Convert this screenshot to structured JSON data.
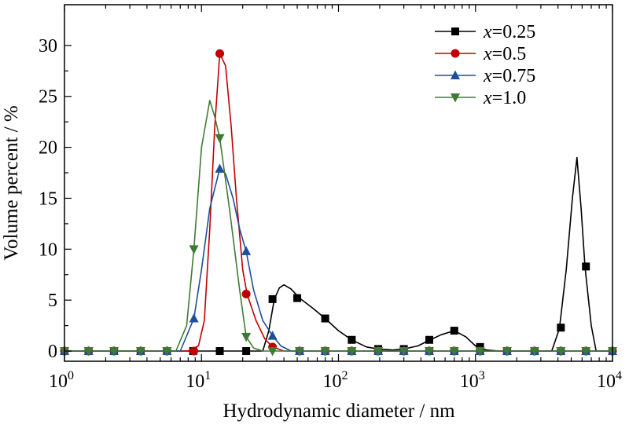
{
  "chart_data": {
    "type": "line",
    "xlabel": "Hydrodynamic diameter / nm",
    "ylabel": "Volume percent / %",
    "x_scale": "log",
    "xlim": [
      1,
      10000
    ],
    "ylim": [
      -1,
      34
    ],
    "x_ticks": [
      {
        "value": 1,
        "base": "10",
        "exp": "0"
      },
      {
        "value": 10,
        "base": "10",
        "exp": "1"
      },
      {
        "value": 100,
        "base": "10",
        "exp": "2"
      },
      {
        "value": 1000,
        "base": "10",
        "exp": "3"
      },
      {
        "value": 10000,
        "base": "10",
        "exp": "4"
      }
    ],
    "y_ticks": [
      0,
      5,
      10,
      15,
      20,
      25,
      30
    ],
    "legend_position": "top-right",
    "series": [
      {
        "name": "0.25",
        "name_var": "x",
        "color": "#000000",
        "marker": "square",
        "line_points": [
          [
            1,
            0
          ],
          [
            28,
            0
          ],
          [
            31,
            2
          ],
          [
            34,
            5.1
          ],
          [
            37,
            6.2
          ],
          [
            40,
            6.5
          ],
          [
            45,
            6.1
          ],
          [
            52,
            5.2
          ],
          [
            65,
            4.2
          ],
          [
            80,
            3.2
          ],
          [
            100,
            2
          ],
          [
            125,
            1.1
          ],
          [
            160,
            0.4
          ],
          [
            195,
            0.2
          ],
          [
            250,
            0.1
          ],
          [
            300,
            0.2
          ],
          [
            380,
            0.5
          ],
          [
            450,
            1
          ],
          [
            560,
            1.6
          ],
          [
            700,
            2
          ],
          [
            850,
            1.4
          ],
          [
            1000,
            0.5
          ],
          [
            1200,
            0.1
          ],
          [
            1500,
            0
          ],
          [
            3600,
            0
          ],
          [
            4100,
            2.2
          ],
          [
            4600,
            8
          ],
          [
            5100,
            15
          ],
          [
            5500,
            19
          ],
          [
            5900,
            14
          ],
          [
            6300,
            8.3
          ],
          [
            7000,
            2.5
          ],
          [
            7600,
            0
          ],
          [
            10000,
            0
          ]
        ],
        "markers": [
          [
            1,
            0
          ],
          [
            1.5,
            0
          ],
          [
            2.3,
            0
          ],
          [
            3.6,
            0
          ],
          [
            5.6,
            0
          ],
          [
            8.7,
            0
          ],
          [
            13.6,
            0
          ],
          [
            21.2,
            0
          ],
          [
            33,
            5.1
          ],
          [
            50,
            5.2
          ],
          [
            80,
            3.2
          ],
          [
            125,
            1.1
          ],
          [
            195,
            0.2
          ],
          [
            300,
            0.2
          ],
          [
            460,
            1.1
          ],
          [
            700,
            2
          ],
          [
            1080,
            0.4
          ],
          [
            1700,
            0
          ],
          [
            2700,
            0
          ],
          [
            4200,
            2.3
          ],
          [
            6400,
            8.3
          ],
          [
            10000,
            0
          ]
        ]
      },
      {
        "name": "0.5",
        "name_var": "x",
        "color": "#c00000",
        "marker": "circle",
        "line_points": [
          [
            1,
            0
          ],
          [
            8,
            0
          ],
          [
            9.5,
            0.5
          ],
          [
            10.5,
            3
          ],
          [
            11.5,
            12
          ],
          [
            12.5,
            22
          ],
          [
            13.6,
            29.2
          ],
          [
            15,
            28
          ],
          [
            16.5,
            22
          ],
          [
            18,
            15
          ],
          [
            20,
            8
          ],
          [
            21.5,
            5.6
          ],
          [
            25,
            3
          ],
          [
            29,
            1.2
          ],
          [
            33,
            0.4
          ],
          [
            40,
            0
          ],
          [
            10000,
            0
          ]
        ],
        "markers": [
          [
            1,
            0
          ],
          [
            1.5,
            0
          ],
          [
            2.3,
            0
          ],
          [
            3.6,
            0
          ],
          [
            5.6,
            0
          ],
          [
            8.8,
            0
          ],
          [
            13.6,
            29.2
          ],
          [
            21.2,
            5.6
          ],
          [
            33,
            0.4
          ],
          [
            52,
            0
          ],
          [
            80,
            0
          ],
          [
            125,
            0
          ],
          [
            195,
            0
          ],
          [
            300,
            0
          ],
          [
            460,
            0
          ],
          [
            700,
            0
          ],
          [
            1080,
            0
          ],
          [
            1700,
            0
          ],
          [
            2700,
            0
          ],
          [
            4200,
            0
          ],
          [
            6400,
            0
          ],
          [
            10000,
            0
          ]
        ]
      },
      {
        "name": "0.75",
        "name_var": "x",
        "color": "#1f4e9a",
        "marker": "triangle-up",
        "line_points": [
          [
            1,
            0
          ],
          [
            7,
            0
          ],
          [
            8.8,
            3.2
          ],
          [
            10,
            8
          ],
          [
            11.5,
            14
          ],
          [
            13.6,
            17.9
          ],
          [
            15,
            17.4
          ],
          [
            17,
            15
          ],
          [
            19,
            12
          ],
          [
            21.2,
            9.8
          ],
          [
            24,
            6
          ],
          [
            28,
            3
          ],
          [
            33,
            1.5
          ],
          [
            38,
            0.5
          ],
          [
            45,
            0
          ],
          [
            10000,
            0
          ]
        ],
        "markers": [
          [
            1,
            0
          ],
          [
            1.5,
            0
          ],
          [
            2.3,
            0
          ],
          [
            3.6,
            0
          ],
          [
            5.6,
            0
          ],
          [
            8.8,
            3.2
          ],
          [
            13.6,
            17.9
          ],
          [
            21.2,
            9.8
          ],
          [
            33,
            1.5
          ],
          [
            52,
            0
          ],
          [
            80,
            0
          ],
          [
            125,
            0
          ],
          [
            195,
            0
          ],
          [
            300,
            0
          ],
          [
            460,
            0
          ],
          [
            700,
            0
          ],
          [
            1080,
            0
          ],
          [
            1700,
            0
          ],
          [
            2700,
            0
          ],
          [
            4200,
            0
          ],
          [
            6400,
            0
          ],
          [
            10000,
            0
          ]
        ]
      },
      {
        "name": "1.0",
        "name_var": "x",
        "color": "#3f7a34",
        "marker": "triangle-down",
        "line_points": [
          [
            1,
            0
          ],
          [
            6.5,
            0
          ],
          [
            7.8,
            2.5
          ],
          [
            8.8,
            10
          ],
          [
            10,
            20
          ],
          [
            11.5,
            24.6
          ],
          [
            12.5,
            23
          ],
          [
            13.6,
            20.9
          ],
          [
            16,
            14
          ],
          [
            19,
            6
          ],
          [
            21.2,
            1.4
          ],
          [
            24,
            0.3
          ],
          [
            28,
            0
          ],
          [
            10000,
            0
          ]
        ],
        "markers": [
          [
            1,
            0
          ],
          [
            1.5,
            0
          ],
          [
            2.3,
            0
          ],
          [
            3.6,
            0
          ],
          [
            5.6,
            0
          ],
          [
            8.8,
            10
          ],
          [
            13.6,
            20.9
          ],
          [
            21.2,
            1.4
          ],
          [
            33,
            0
          ],
          [
            52,
            0
          ],
          [
            80,
            0
          ],
          [
            125,
            0
          ],
          [
            195,
            0
          ],
          [
            300,
            0
          ],
          [
            460,
            0
          ],
          [
            700,
            0
          ],
          [
            1080,
            0
          ],
          [
            1700,
            0
          ],
          [
            2700,
            0
          ],
          [
            4200,
            0
          ],
          [
            6400,
            0
          ],
          [
            10000,
            0
          ]
        ]
      }
    ]
  }
}
